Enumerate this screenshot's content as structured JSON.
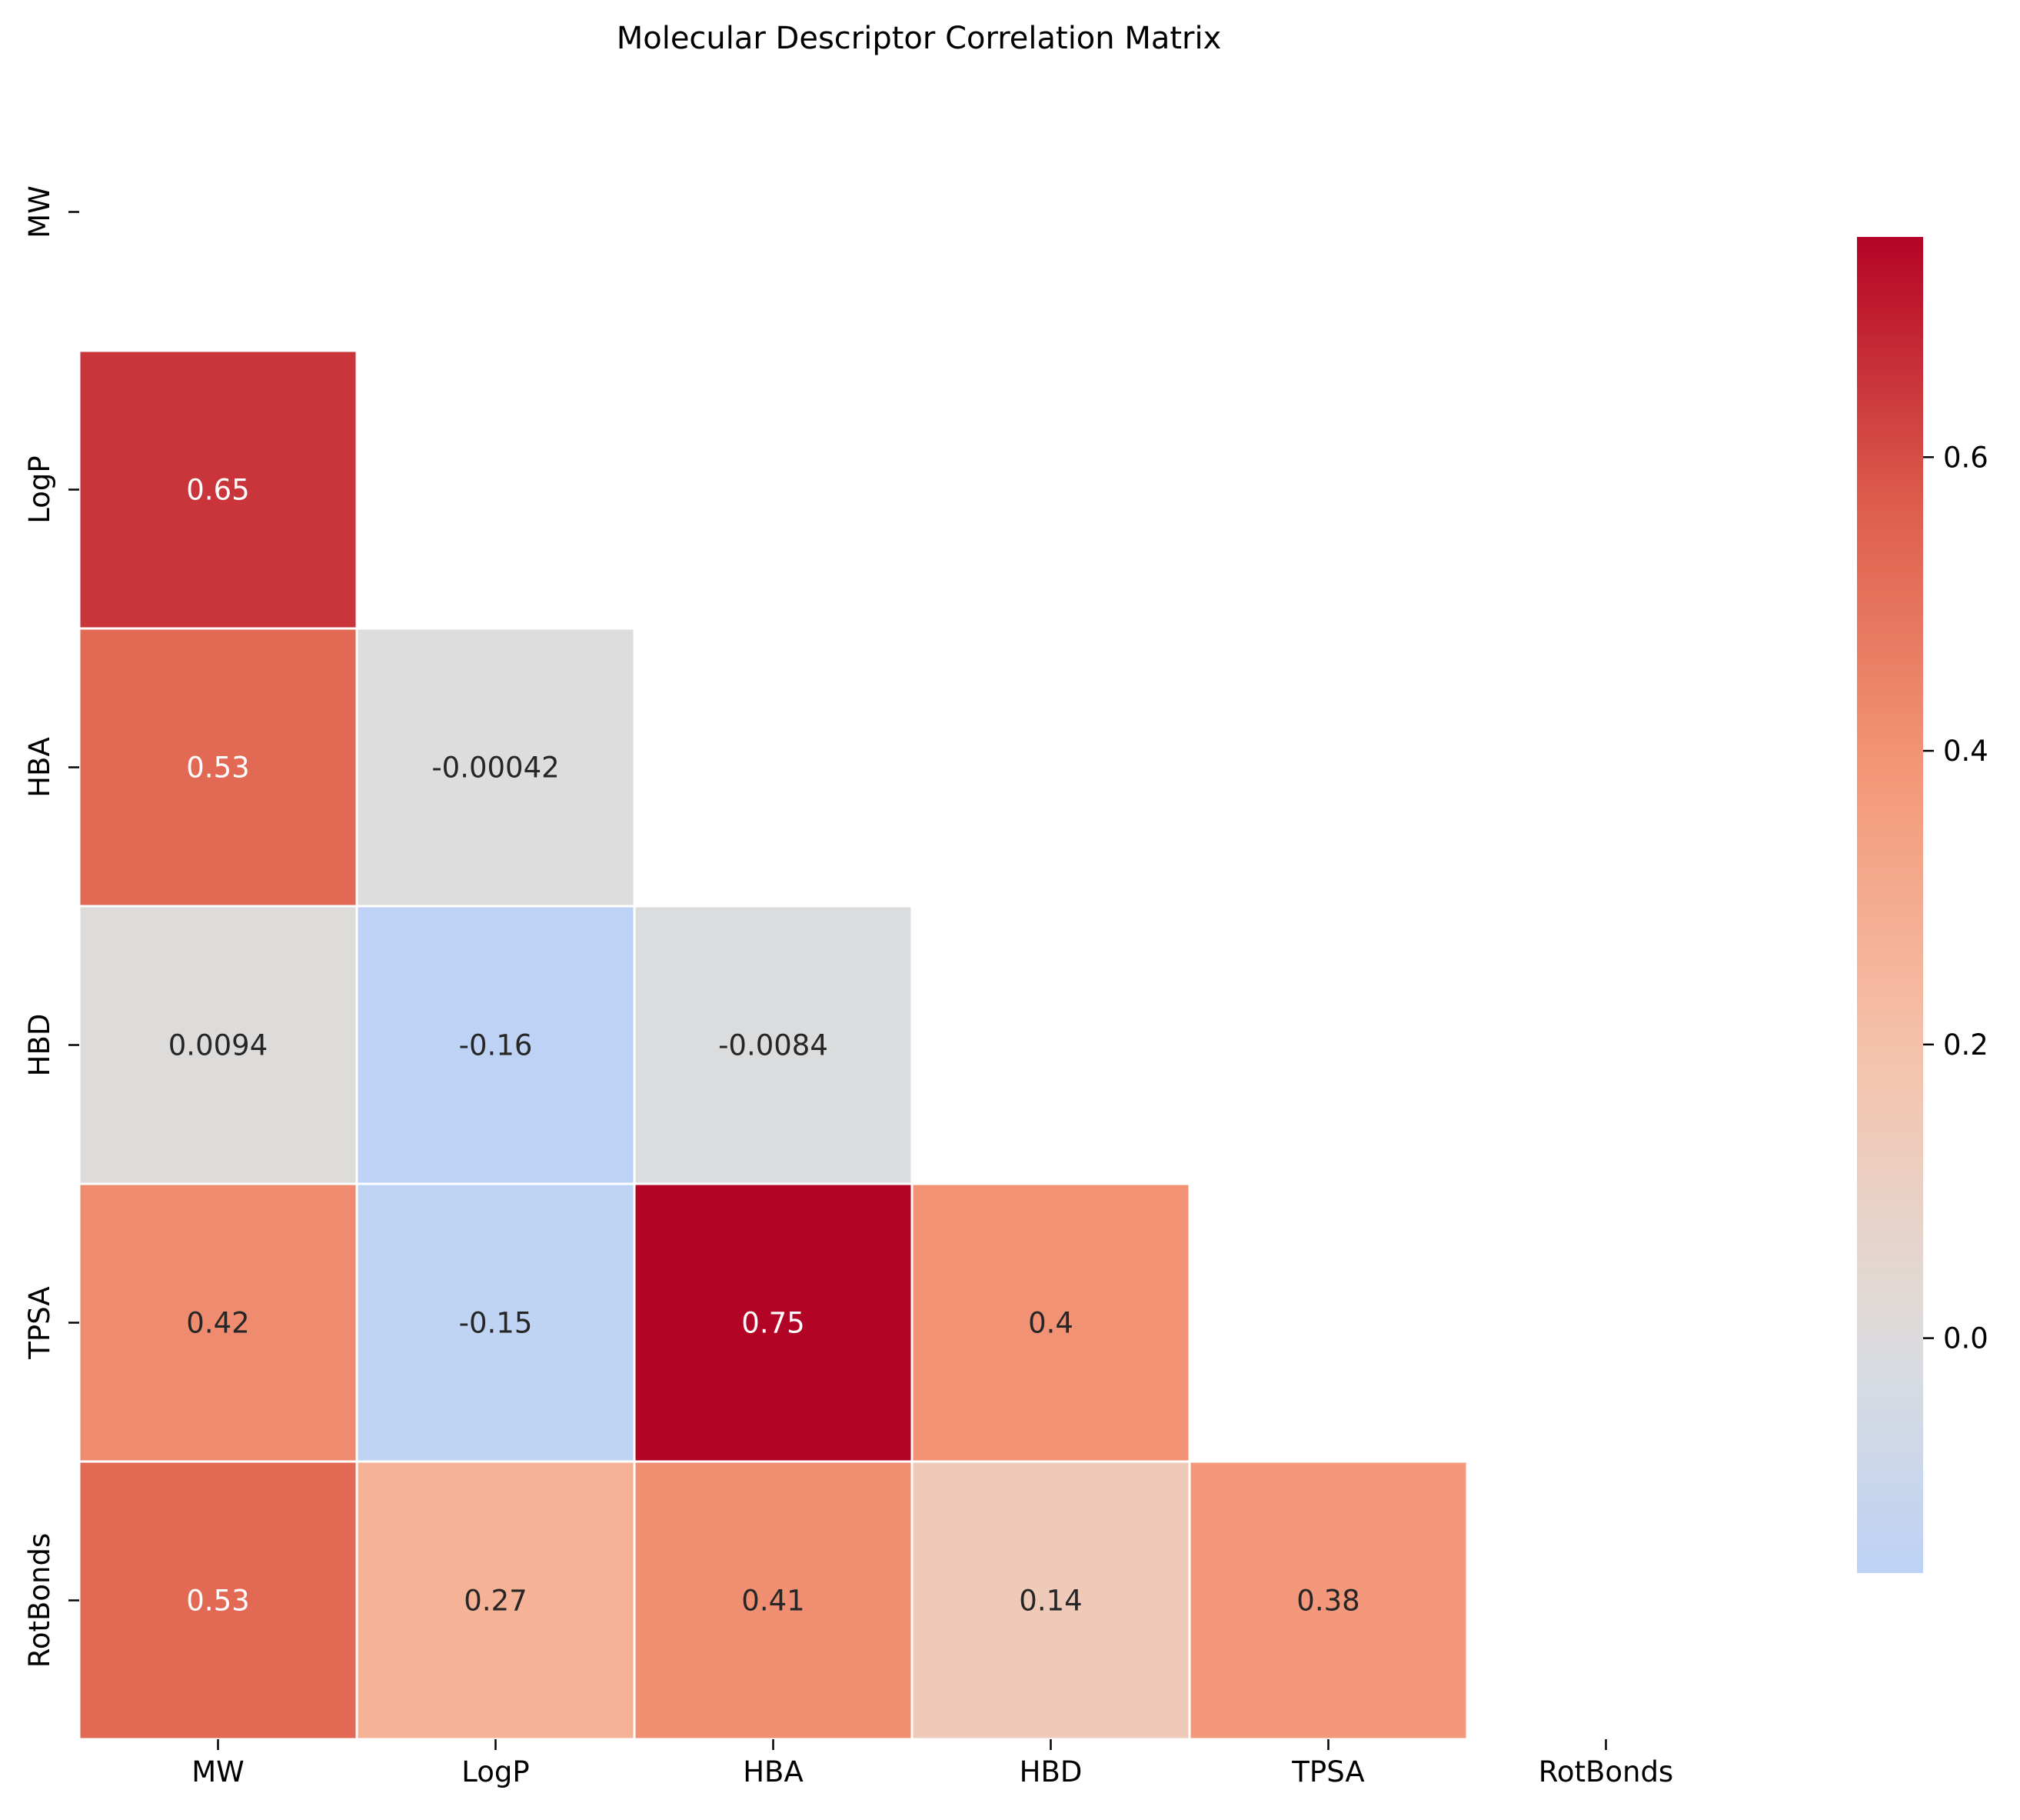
{
  "chart_data": {
    "type": "heatmap",
    "title": "Molecular Descriptor Correlation Matrix",
    "labels": [
      "MW",
      "LogP",
      "HBA",
      "HBD",
      "TPSA",
      "RotBonds"
    ],
    "mask": "upper-triangle-including-diagonal",
    "cells": [
      {
        "row": "LogP",
        "col": "MW",
        "value": 0.65,
        "label": "0.65"
      },
      {
        "row": "HBA",
        "col": "MW",
        "value": 0.53,
        "label": "0.53"
      },
      {
        "row": "HBA",
        "col": "LogP",
        "value": -0.00042,
        "label": "-0.00042"
      },
      {
        "row": "HBD",
        "col": "MW",
        "value": 0.0094,
        "label": "0.0094"
      },
      {
        "row": "HBD",
        "col": "LogP",
        "value": -0.16,
        "label": "-0.16"
      },
      {
        "row": "HBD",
        "col": "HBA",
        "value": -0.0084,
        "label": "-0.0084"
      },
      {
        "row": "TPSA",
        "col": "MW",
        "value": 0.42,
        "label": "0.42"
      },
      {
        "row": "TPSA",
        "col": "LogP",
        "value": -0.15,
        "label": "-0.15"
      },
      {
        "row": "TPSA",
        "col": "HBA",
        "value": 0.75,
        "label": "0.75"
      },
      {
        "row": "TPSA",
        "col": "HBD",
        "value": 0.4,
        "label": "0.4"
      },
      {
        "row": "RotBonds",
        "col": "MW",
        "value": 0.53,
        "label": "0.53"
      },
      {
        "row": "RotBonds",
        "col": "LogP",
        "value": 0.27,
        "label": "0.27"
      },
      {
        "row": "RotBonds",
        "col": "HBA",
        "value": 0.41,
        "label": "0.41"
      },
      {
        "row": "RotBonds",
        "col": "HBD",
        "value": 0.14,
        "label": "0.14"
      },
      {
        "row": "RotBonds",
        "col": "TPSA",
        "value": 0.38,
        "label": "0.38"
      }
    ],
    "colormap": "coolwarm",
    "colormap_center": 0,
    "color_range": [
      -0.16,
      0.75
    ],
    "colorbar": {
      "ticks": [
        0.0,
        0.2,
        0.4,
        0.6
      ],
      "tick_labels": [
        "0.0",
        "0.2",
        "0.4",
        "0.6"
      ]
    },
    "grid": false
  }
}
